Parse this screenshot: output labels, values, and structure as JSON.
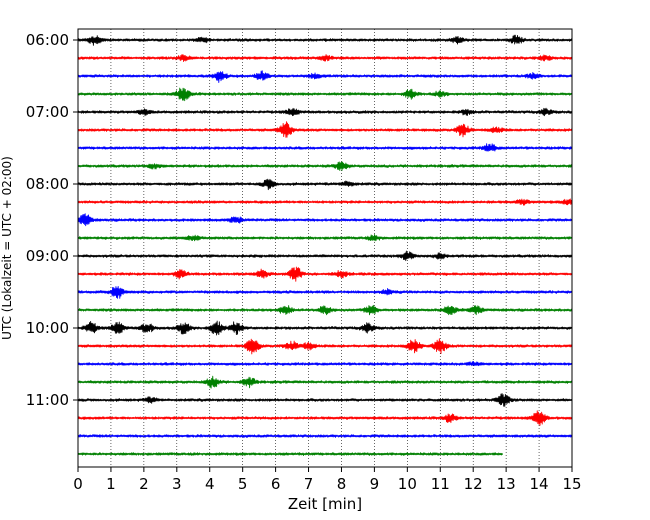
{
  "chart_data": {
    "type": "line",
    "title": "",
    "xlabel": "Zeit  [min]",
    "ylabel": "UTC (Lokalzeit = UTC + 02:00)",
    "xlim": [
      0,
      15
    ],
    "x_ticks": [
      "0",
      "1",
      "2",
      "3",
      "4",
      "5",
      "6",
      "7",
      "8",
      "9",
      "10",
      "11",
      "12",
      "13",
      "14",
      "15"
    ],
    "y_tick_labels": [
      "06:00",
      "07:00",
      "08:00",
      "09:00",
      "10:00",
      "11:00"
    ],
    "grid": "vertical dotted",
    "colors": [
      "#000000",
      "#ff0000",
      "#0000ff",
      "#008000"
    ],
    "rows": [
      {
        "time": "06:00",
        "color": "#000000",
        "end_min": 15,
        "bursts": [
          [
            0.5,
            0.6
          ],
          [
            3.8,
            0.3
          ],
          [
            11.5,
            0.4
          ],
          [
            13.3,
            0.5
          ]
        ]
      },
      {
        "time": "06:15",
        "color": "#ff0000",
        "end_min": 15,
        "bursts": [
          [
            3.2,
            0.3
          ],
          [
            7.5,
            0.3
          ],
          [
            14.2,
            0.3
          ]
        ]
      },
      {
        "time": "06:30",
        "color": "#0000ff",
        "end_min": 15,
        "bursts": [
          [
            4.3,
            0.7
          ],
          [
            5.6,
            0.6
          ],
          [
            7.2,
            0.3
          ],
          [
            13.8,
            0.3
          ]
        ]
      },
      {
        "time": "06:45",
        "color": "#008000",
        "end_min": 15,
        "bursts": [
          [
            3.2,
            0.9
          ],
          [
            10.1,
            0.6
          ],
          [
            11.0,
            0.3
          ]
        ]
      },
      {
        "time": "07:00",
        "color": "#000000",
        "end_min": 15,
        "bursts": [
          [
            2.0,
            0.3
          ],
          [
            6.5,
            0.4
          ],
          [
            11.8,
            0.3
          ],
          [
            14.2,
            0.4
          ]
        ]
      },
      {
        "time": "07:15",
        "color": "#ff0000",
        "end_min": 15,
        "bursts": [
          [
            6.3,
            1.0
          ],
          [
            11.7,
            0.8
          ],
          [
            12.7,
            0.3
          ]
        ]
      },
      {
        "time": "07:30",
        "color": "#0000ff",
        "end_min": 15,
        "bursts": [
          [
            12.5,
            0.5
          ]
        ]
      },
      {
        "time": "07:45",
        "color": "#008000",
        "end_min": 15,
        "bursts": [
          [
            2.3,
            0.3
          ],
          [
            8.0,
            0.5
          ]
        ]
      },
      {
        "time": "08:00",
        "color": "#000000",
        "end_min": 15,
        "bursts": [
          [
            5.8,
            0.6
          ],
          [
            8.2,
            0.3
          ]
        ]
      },
      {
        "time": "08:15",
        "color": "#ff0000",
        "end_min": 15,
        "bursts": [
          [
            13.5,
            0.3
          ],
          [
            14.9,
            0.3
          ]
        ]
      },
      {
        "time": "08:30",
        "color": "#0000ff",
        "end_min": 15,
        "bursts": [
          [
            0.2,
            0.8
          ],
          [
            4.8,
            0.4
          ]
        ]
      },
      {
        "time": "08:45",
        "color": "#008000",
        "end_min": 15,
        "bursts": [
          [
            3.5,
            0.3
          ],
          [
            9.0,
            0.3
          ]
        ]
      },
      {
        "time": "09:00",
        "color": "#000000",
        "end_min": 15,
        "bursts": [
          [
            10.0,
            0.5
          ],
          [
            11.0,
            0.3
          ]
        ]
      },
      {
        "time": "09:15",
        "color": "#ff0000",
        "end_min": 15,
        "bursts": [
          [
            3.1,
            0.5
          ],
          [
            5.6,
            0.5
          ],
          [
            6.6,
            0.9
          ],
          [
            8.0,
            0.4
          ]
        ]
      },
      {
        "time": "09:30",
        "color": "#0000ff",
        "end_min": 15,
        "bursts": [
          [
            1.2,
            0.8
          ],
          [
            9.4,
            0.3
          ]
        ]
      },
      {
        "time": "09:45",
        "color": "#008000",
        "end_min": 15,
        "bursts": [
          [
            6.3,
            0.6
          ],
          [
            7.5,
            0.5
          ],
          [
            8.9,
            0.6
          ],
          [
            11.3,
            0.6
          ],
          [
            12.1,
            0.5
          ]
        ]
      },
      {
        "time": "10:00",
        "color": "#000000",
        "end_min": 15,
        "bursts": [
          [
            0.4,
            0.7
          ],
          [
            1.2,
            0.7
          ],
          [
            2.1,
            0.6
          ],
          [
            3.2,
            0.7
          ],
          [
            4.2,
            0.9
          ],
          [
            4.8,
            0.8
          ],
          [
            8.8,
            0.6
          ]
        ]
      },
      {
        "time": "10:15",
        "color": "#ff0000",
        "end_min": 15,
        "bursts": [
          [
            5.3,
            1.0
          ],
          [
            6.5,
            0.6
          ],
          [
            7.0,
            0.4
          ],
          [
            10.2,
            0.8
          ],
          [
            11.0,
            0.9
          ]
        ]
      },
      {
        "time": "10:30",
        "color": "#0000ff",
        "end_min": 15,
        "bursts": [
          [
            12.0,
            0.2
          ]
        ]
      },
      {
        "time": "10:45",
        "color": "#008000",
        "end_min": 15,
        "bursts": [
          [
            4.1,
            0.7
          ],
          [
            5.2,
            0.6
          ]
        ]
      },
      {
        "time": "11:00",
        "color": "#000000",
        "end_min": 15,
        "bursts": [
          [
            2.2,
            0.3
          ],
          [
            12.9,
            0.8
          ]
        ]
      },
      {
        "time": "11:15",
        "color": "#ff0000",
        "end_min": 15,
        "bursts": [
          [
            11.3,
            0.5
          ],
          [
            14.0,
            0.9
          ]
        ]
      },
      {
        "time": "11:30",
        "color": "#0000ff",
        "end_min": 15,
        "bursts": []
      },
      {
        "time": "11:45",
        "color": "#008000",
        "end_min": 12.9,
        "bursts": []
      }
    ]
  }
}
